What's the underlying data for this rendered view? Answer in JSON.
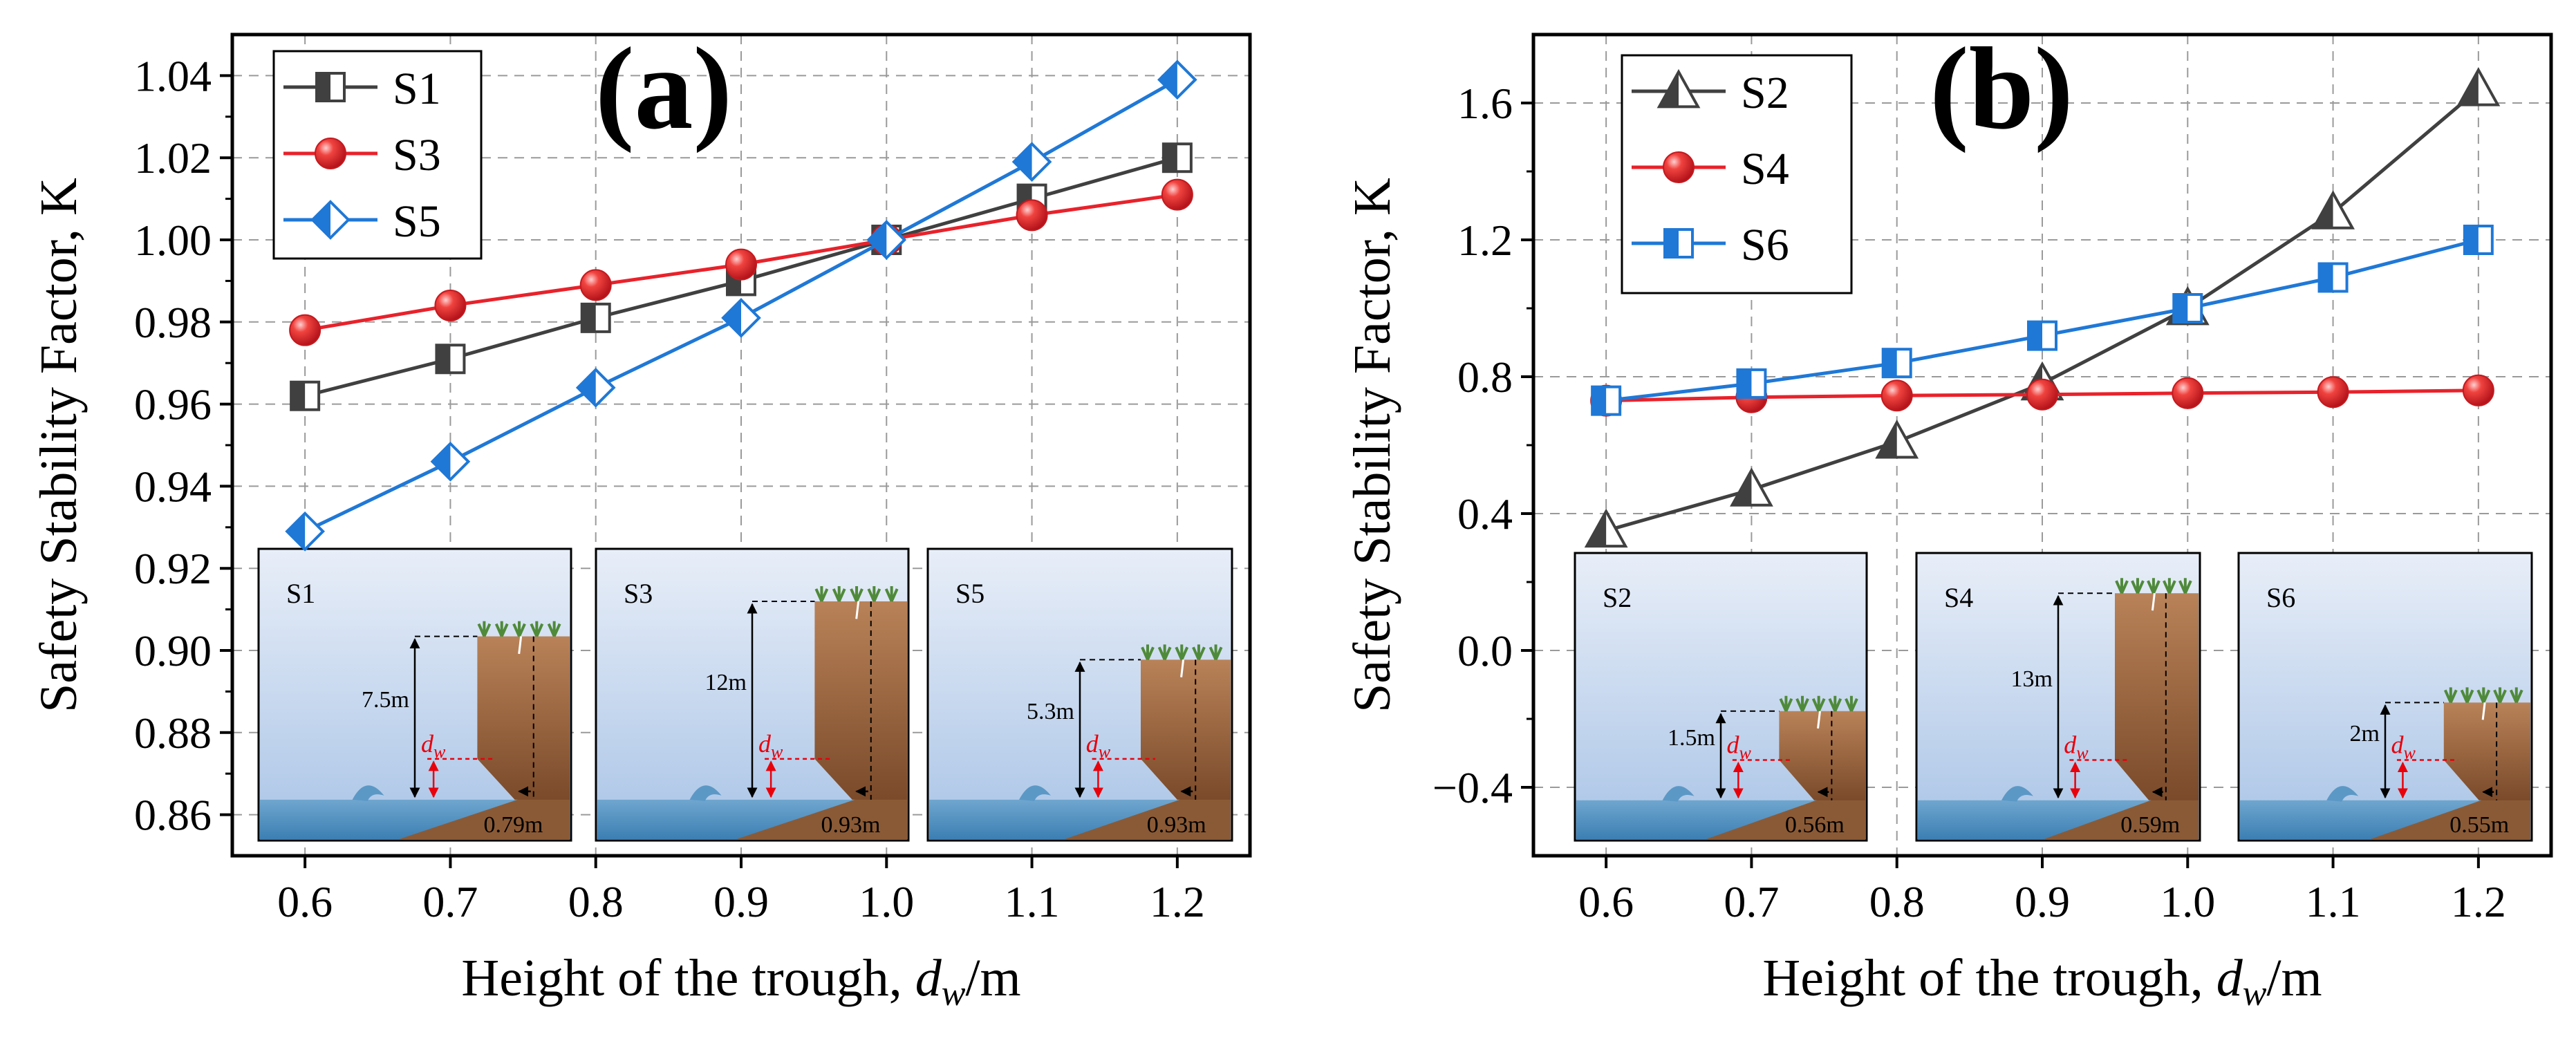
{
  "chart_data": [
    {
      "panel": "(a)",
      "type": "line",
      "xlabel": "Height of the trough, d_w/m",
      "xlabel_main": "Height of the trough, ",
      "xlabel_var": "d",
      "xlabel_sub": "w",
      "xlabel_unit": "/m",
      "ylabel": "Safety Stability Factor, K",
      "xlim": [
        0.55,
        1.25
      ],
      "ylim": [
        0.85,
        1.05
      ],
      "xticks": [
        0.6,
        0.7,
        0.8,
        0.9,
        1.0,
        1.1,
        1.2
      ],
      "xtick_labels": [
        "0.6",
        "0.7",
        "0.8",
        "0.9",
        "1.0",
        "1.1",
        "1.2"
      ],
      "yticks": [
        0.86,
        0.88,
        0.9,
        0.92,
        0.94,
        0.96,
        0.98,
        1.0,
        1.02,
        1.04
      ],
      "ytick_labels": [
        "0.86",
        "0.88",
        "0.90",
        "0.92",
        "0.94",
        "0.96",
        "0.98",
        "1.00",
        "1.02",
        "1.04"
      ],
      "grid": true,
      "legend_position": "top-left",
      "x": [
        0.6,
        0.7,
        0.8,
        0.9,
        1.0,
        1.1,
        1.2
      ],
      "series": [
        {
          "name": "S1",
          "color": "#404040",
          "marker": "half-square",
          "values": [
            0.962,
            0.971,
            0.981,
            0.99,
            1.0,
            1.01,
            1.02
          ]
        },
        {
          "name": "S3",
          "color": "#e8222b",
          "marker": "circle",
          "values": [
            0.978,
            0.984,
            0.989,
            0.994,
            1.0,
            1.006,
            1.011
          ]
        },
        {
          "name": "S5",
          "color": "#1f78d6",
          "marker": "half-diamond",
          "values": [
            0.929,
            0.946,
            0.964,
            0.981,
            1.0,
            1.019,
            1.039
          ]
        }
      ],
      "insets": [
        {
          "label": "S1",
          "height": "7.5m",
          "width": "0.79m",
          "dw": "d",
          "dw_sub": "w"
        },
        {
          "label": "S3",
          "height": "12m",
          "width": "0.93m",
          "dw": "d",
          "dw_sub": "w"
        },
        {
          "label": "S5",
          "height": "5.3m",
          "width": "0.93m",
          "dw": "d",
          "dw_sub": "w"
        }
      ]
    },
    {
      "panel": "(b)",
      "type": "line",
      "xlabel": "Height of the trough, d_w/m",
      "xlabel_main": "Height of the trough, ",
      "xlabel_var": "d",
      "xlabel_sub": "w",
      "xlabel_unit": "/m",
      "ylabel": "Safety Stability Factor, K",
      "xlim": [
        0.55,
        1.25
      ],
      "ylim": [
        -0.6,
        1.8
      ],
      "xticks": [
        0.6,
        0.7,
        0.8,
        0.9,
        1.0,
        1.1,
        1.2
      ],
      "xtick_labels": [
        "0.6",
        "0.7",
        "0.8",
        "0.9",
        "1.0",
        "1.1",
        "1.2"
      ],
      "yticks": [
        -0.4,
        0.0,
        0.4,
        0.8,
        1.2,
        1.6
      ],
      "ytick_labels": [
        "−0.4",
        "0.0",
        "0.4",
        "0.8",
        "1.2",
        "1.6"
      ],
      "grid": true,
      "legend_position": "top-left",
      "x": [
        0.6,
        0.7,
        0.8,
        0.9,
        1.0,
        1.1,
        1.2
      ],
      "series": [
        {
          "name": "S2",
          "color": "#404040",
          "marker": "half-triangle",
          "values": [
            0.35,
            0.47,
            0.61,
            0.78,
            1.0,
            1.28,
            1.64
          ]
        },
        {
          "name": "S4",
          "color": "#e8222b",
          "marker": "circle",
          "values": [
            0.73,
            0.74,
            0.745,
            0.748,
            0.752,
            0.755,
            0.76
          ]
        },
        {
          "name": "S6",
          "color": "#1f78d6",
          "marker": "half-square",
          "values": [
            0.73,
            0.78,
            0.84,
            0.92,
            1.0,
            1.09,
            1.2
          ]
        }
      ],
      "insets": [
        {
          "label": "S2",
          "height": "1.5m",
          "width": "0.56m",
          "dw": "d",
          "dw_sub": "w"
        },
        {
          "label": "S4",
          "height": "13m",
          "width": "0.59m",
          "dw": "d",
          "dw_sub": "w"
        },
        {
          "label": "S6",
          "height": "2m",
          "width": "0.55m",
          "dw": "d",
          "dw_sub": "w"
        }
      ]
    }
  ]
}
